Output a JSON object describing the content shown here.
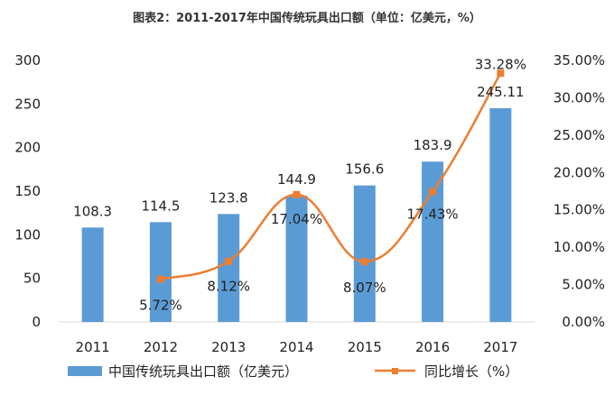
{
  "chart_data": {
    "type": "bar+line",
    "title": "图表2：2011-2017年中国传统玩具出口额（单位：亿美元，%）",
    "categories": [
      "2011",
      "2012",
      "2013",
      "2014",
      "2015",
      "2016",
      "2017"
    ],
    "series": [
      {
        "name": "中国传统玩具出口额（亿美元）",
        "type": "bar",
        "axis": "left",
        "color": "#5b9bd5",
        "values": [
          108.3,
          114.5,
          123.8,
          144.9,
          156.6,
          183.9,
          245.11
        ],
        "labels": [
          "108.3",
          "114.5",
          "123.8",
          "144.9",
          "156.6",
          "183.9",
          "245.11"
        ]
      },
      {
        "name": "同比增长（%）",
        "type": "line",
        "axis": "right",
        "color": "#ed7d31",
        "values": [
          null,
          5.72,
          8.12,
          17.04,
          8.07,
          17.43,
          33.28
        ],
        "labels": [
          null,
          "5.72%",
          "8.12%",
          "17.04%",
          "8.07%",
          "17.43%",
          "33.28%"
        ]
      }
    ],
    "y_left": {
      "ylim": [
        0,
        300
      ],
      "ticks": [
        "0",
        "50",
        "100",
        "150",
        "200",
        "250",
        "300"
      ],
      "values": [
        0,
        50,
        100,
        150,
        200,
        250,
        300
      ]
    },
    "y_right": {
      "ylim": [
        0,
        35
      ],
      "ticks": [
        "0.00%",
        "5.00%",
        "10.00%",
        "15.00%",
        "20.00%",
        "25.00%",
        "30.00%",
        "35.00%"
      ],
      "values": [
        0,
        5,
        10,
        15,
        20,
        25,
        30,
        35
      ]
    },
    "grid": false,
    "legend_position": "bottom"
  }
}
